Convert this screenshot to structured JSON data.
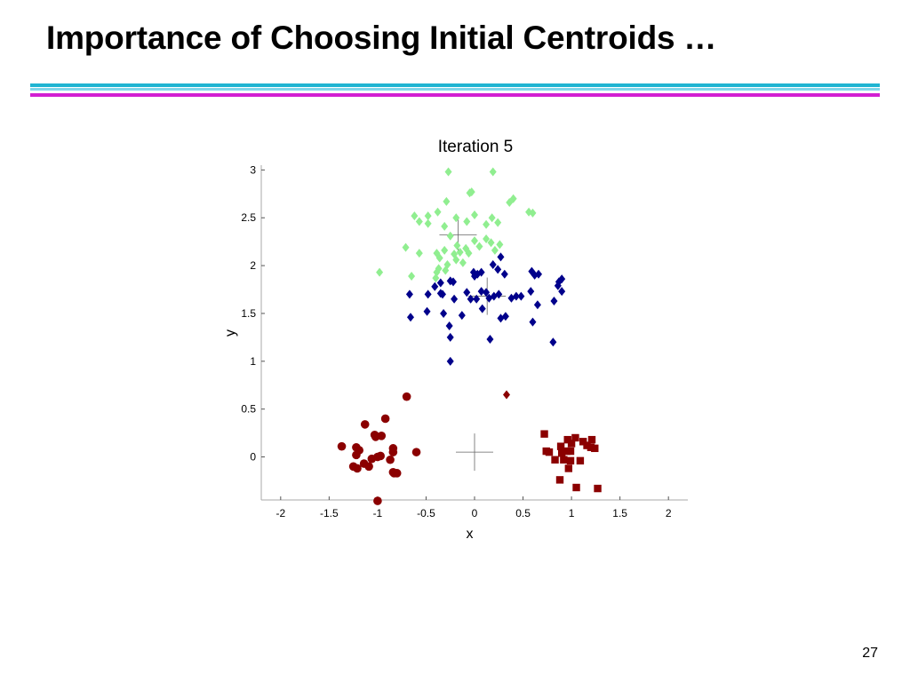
{
  "slide": {
    "title": "Importance of Choosing Initial Centroids …",
    "page_number": "27",
    "rule_colors": [
      "#1fb4d2",
      "#7fd6ea",
      "#d21fd2"
    ]
  },
  "chart_data": {
    "type": "scatter",
    "title": "Iteration 5",
    "xlabel": "x",
    "ylabel": "y",
    "xlim": [
      -2.2,
      2.2
    ],
    "ylim": [
      -0.45,
      3.05
    ],
    "xticks": [
      -2,
      -1.5,
      -1,
      -0.5,
      0,
      0.5,
      1,
      1.5,
      2
    ],
    "yticks": [
      0,
      0.5,
      1,
      1.5,
      2,
      2.5,
      3
    ],
    "grid": false,
    "legend": "none",
    "series": [
      {
        "marker": "diamond",
        "color": "#90ee90",
        "points": [
          [
            -0.27,
            2.98
          ],
          [
            0.19,
            2.98
          ],
          [
            -0.05,
            2.76
          ],
          [
            -0.03,
            2.77
          ],
          [
            -0.29,
            2.67
          ],
          [
            0.36,
            2.66
          ],
          [
            0.4,
            2.7
          ],
          [
            0.56,
            2.56
          ],
          [
            0.6,
            2.55
          ],
          [
            -0.62,
            2.52
          ],
          [
            -0.48,
            2.52
          ],
          [
            -0.38,
            2.56
          ],
          [
            -0.19,
            2.5
          ],
          [
            -0.08,
            2.46
          ],
          [
            0.0,
            2.53
          ],
          [
            0.12,
            2.43
          ],
          [
            0.18,
            2.5
          ],
          [
            0.24,
            2.45
          ],
          [
            -0.57,
            2.46
          ],
          [
            -0.48,
            2.44
          ],
          [
            -0.31,
            2.41
          ],
          [
            -0.25,
            2.31
          ],
          [
            -0.18,
            2.21
          ],
          [
            -0.09,
            2.18
          ],
          [
            0.0,
            2.26
          ],
          [
            0.12,
            2.28
          ],
          [
            0.17,
            2.24
          ],
          [
            0.26,
            2.22
          ],
          [
            -0.71,
            2.19
          ],
          [
            -0.57,
            2.13
          ],
          [
            -0.39,
            2.13
          ],
          [
            -0.31,
            2.16
          ],
          [
            -0.21,
            2.12
          ],
          [
            -0.15,
            2.14
          ],
          [
            -0.06,
            2.13
          ],
          [
            0.05,
            2.2
          ],
          [
            0.21,
            2.16
          ],
          [
            -0.36,
            2.08
          ],
          [
            -0.28,
            2.01
          ],
          [
            -0.19,
            2.06
          ],
          [
            -0.12,
            2.03
          ],
          [
            -0.37,
            1.97
          ],
          [
            -0.39,
            1.93
          ],
          [
            -0.3,
            1.95
          ],
          [
            -0.65,
            1.89
          ],
          [
            -0.98,
            1.93
          ],
          [
            -0.4,
            1.87
          ]
        ]
      },
      {
        "marker": "diamond",
        "color": "#00008b",
        "points": [
          [
            -0.35,
            1.82
          ],
          [
            -0.25,
            1.84
          ],
          [
            -0.22,
            1.83
          ],
          [
            -0.01,
            1.93
          ],
          [
            0.0,
            1.89
          ],
          [
            0.03,
            1.91
          ],
          [
            0.07,
            1.93
          ],
          [
            0.19,
            2.01
          ],
          [
            0.24,
            1.96
          ],
          [
            0.27,
            2.09
          ],
          [
            0.31,
            1.91
          ],
          [
            0.59,
            1.94
          ],
          [
            0.62,
            1.9
          ],
          [
            0.66,
            1.91
          ],
          [
            0.87,
            1.83
          ],
          [
            0.9,
            1.86
          ],
          [
            0.86,
            1.79
          ],
          [
            -0.67,
            1.7
          ],
          [
            -0.48,
            1.7
          ],
          [
            -0.41,
            1.78
          ],
          [
            -0.35,
            1.71
          ],
          [
            -0.33,
            1.7
          ],
          [
            -0.21,
            1.65
          ],
          [
            -0.08,
            1.72
          ],
          [
            -0.04,
            1.65
          ],
          [
            0.02,
            1.65
          ],
          [
            0.07,
            1.73
          ],
          [
            0.12,
            1.72
          ],
          [
            0.15,
            1.66
          ],
          [
            0.2,
            1.68
          ],
          [
            0.25,
            1.7
          ],
          [
            0.38,
            1.66
          ],
          [
            0.43,
            1.68
          ],
          [
            0.48,
            1.68
          ],
          [
            0.58,
            1.73
          ],
          [
            0.9,
            1.73
          ],
          [
            0.65,
            1.59
          ],
          [
            0.82,
            1.63
          ],
          [
            -0.66,
            1.46
          ],
          [
            -0.49,
            1.52
          ],
          [
            -0.32,
            1.5
          ],
          [
            -0.13,
            1.48
          ],
          [
            0.08,
            1.55
          ],
          [
            0.27,
            1.45
          ],
          [
            0.32,
            1.47
          ],
          [
            0.6,
            1.41
          ],
          [
            -0.26,
            1.37
          ],
          [
            -0.25,
            1.25
          ],
          [
            0.16,
            1.23
          ],
          [
            0.81,
            1.2
          ],
          [
            -0.25,
            1.0
          ]
        ]
      },
      {
        "marker": "circle",
        "color": "#8b0000",
        "points": [
          [
            -0.7,
            0.63
          ],
          [
            -0.92,
            0.4
          ],
          [
            -1.13,
            0.34
          ],
          [
            -1.03,
            0.23
          ],
          [
            -0.96,
            0.22
          ],
          [
            -1.02,
            0.21
          ],
          [
            -1.37,
            0.11
          ],
          [
            -0.84,
            0.09
          ],
          [
            -1.22,
            0.1
          ],
          [
            -1.19,
            0.07
          ],
          [
            -0.6,
            0.05
          ],
          [
            -0.84,
            0.05
          ],
          [
            -1.22,
            0.02
          ],
          [
            -1.06,
            -0.02
          ],
          [
            -1.0,
            0.0
          ],
          [
            -0.97,
            0.01
          ],
          [
            -0.87,
            -0.03
          ],
          [
            -1.14,
            -0.07
          ],
          [
            -1.09,
            -0.1
          ],
          [
            -1.21,
            -0.12
          ],
          [
            -1.25,
            -0.1
          ],
          [
            -0.83,
            -0.17
          ],
          [
            -0.8,
            -0.17
          ],
          [
            -0.84,
            -0.16
          ],
          [
            -1.0,
            -0.46
          ]
        ]
      },
      {
        "marker": "diamond",
        "color": "#8b0000",
        "points": [
          [
            0.33,
            0.65
          ]
        ]
      },
      {
        "marker": "square",
        "color": "#8b0000",
        "points": [
          [
            0.72,
            0.24
          ],
          [
            0.89,
            0.11
          ],
          [
            0.96,
            0.18
          ],
          [
            1.04,
            0.2
          ],
          [
            1.12,
            0.16
          ],
          [
            1.16,
            0.12
          ],
          [
            1.21,
            0.18
          ],
          [
            1.0,
            0.14
          ],
          [
            1.2,
            0.1
          ],
          [
            0.74,
            0.06
          ],
          [
            0.77,
            0.05
          ],
          [
            0.9,
            0.04
          ],
          [
            0.95,
            0.06
          ],
          [
            0.99,
            0.06
          ],
          [
            1.24,
            0.09
          ],
          [
            0.83,
            -0.03
          ],
          [
            0.92,
            -0.03
          ],
          [
            0.99,
            -0.04
          ],
          [
            1.09,
            -0.04
          ],
          [
            0.97,
            -0.12
          ],
          [
            0.88,
            -0.24
          ],
          [
            1.05,
            -0.32
          ],
          [
            1.27,
            -0.33
          ]
        ]
      }
    ],
    "centroids": [
      [
        -0.17,
        2.32
      ],
      [
        0.13,
        1.68
      ],
      [
        0.0,
        0.05
      ]
    ]
  }
}
